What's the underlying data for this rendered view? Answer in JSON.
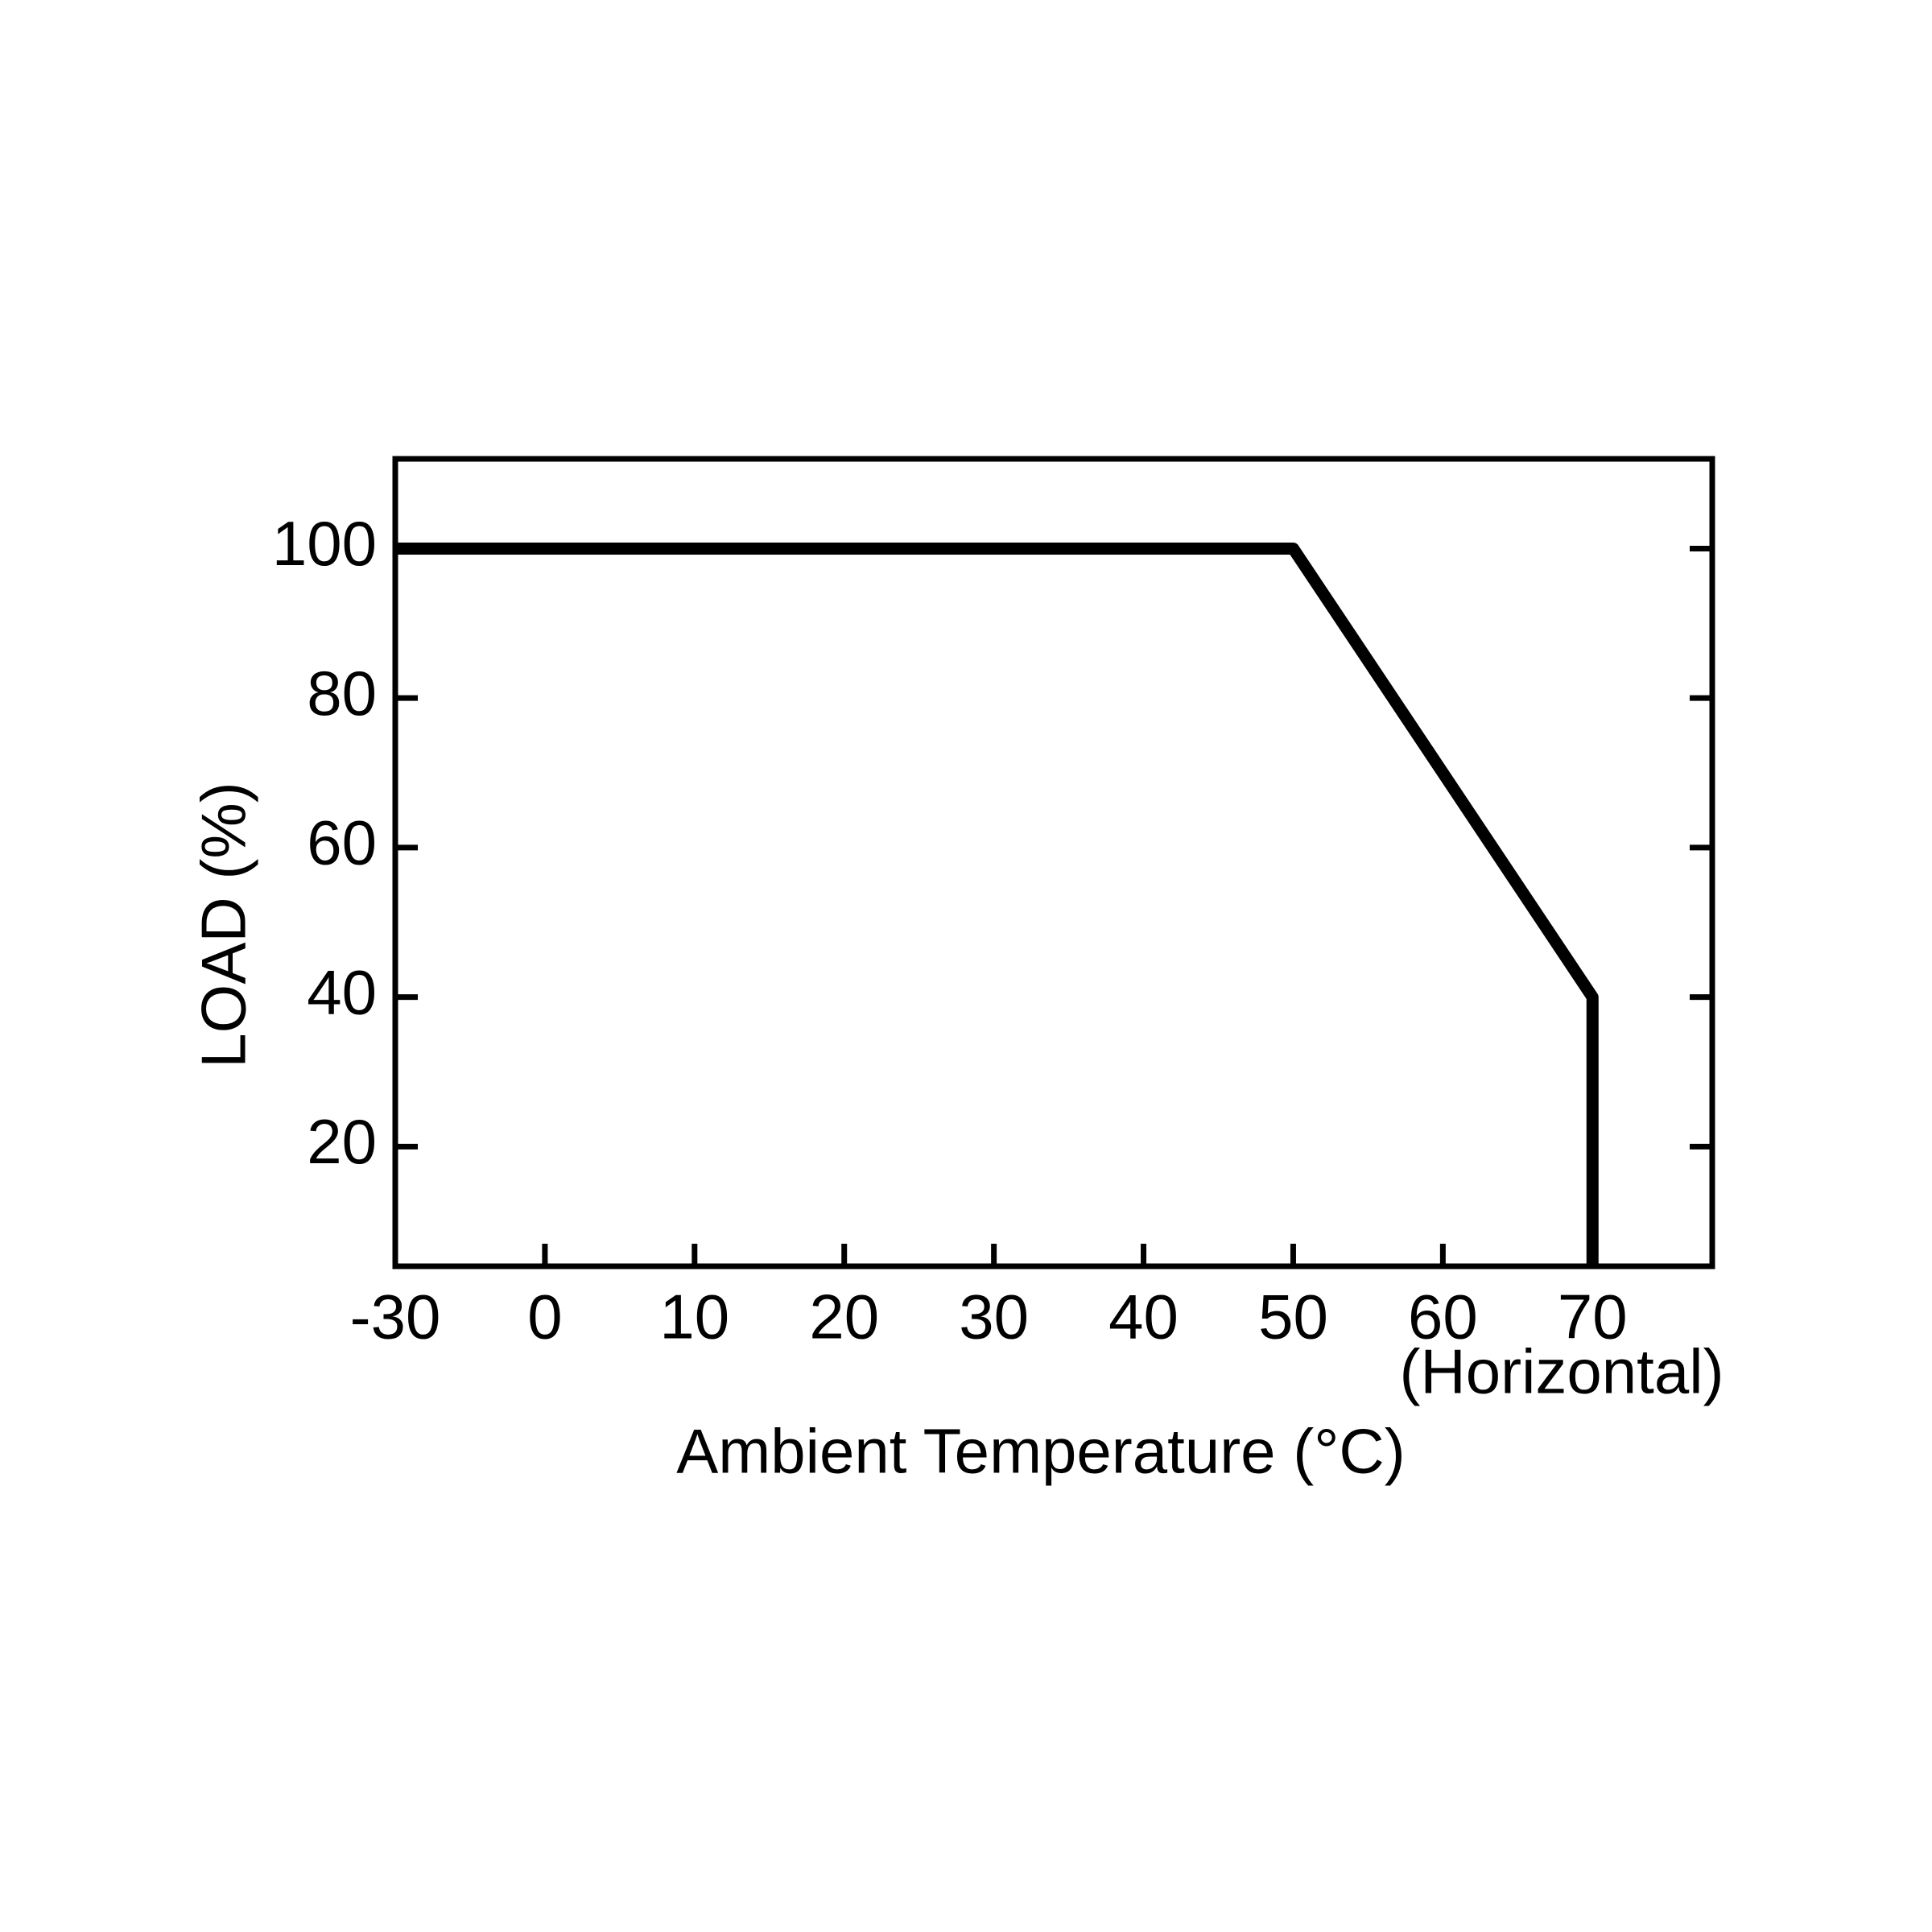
{
  "chart_data": {
    "type": "line",
    "x_label": "Ambient Temperature (°C)",
    "y_label": "LOAD (%)",
    "annotation": "(Horizontal)",
    "x": [
      -30,
      50,
      70,
      70
    ],
    "values": [
      100,
      100,
      40,
      4
    ],
    "color": "#000000",
    "xlim": [
      -30,
      78
    ],
    "xticks": [
      -30,
      0,
      10,
      20,
      30,
      40,
      50,
      60,
      70
    ],
    "ylim": [
      4,
      112
    ],
    "yticks": [
      20,
      40,
      60,
      80,
      100
    ]
  }
}
